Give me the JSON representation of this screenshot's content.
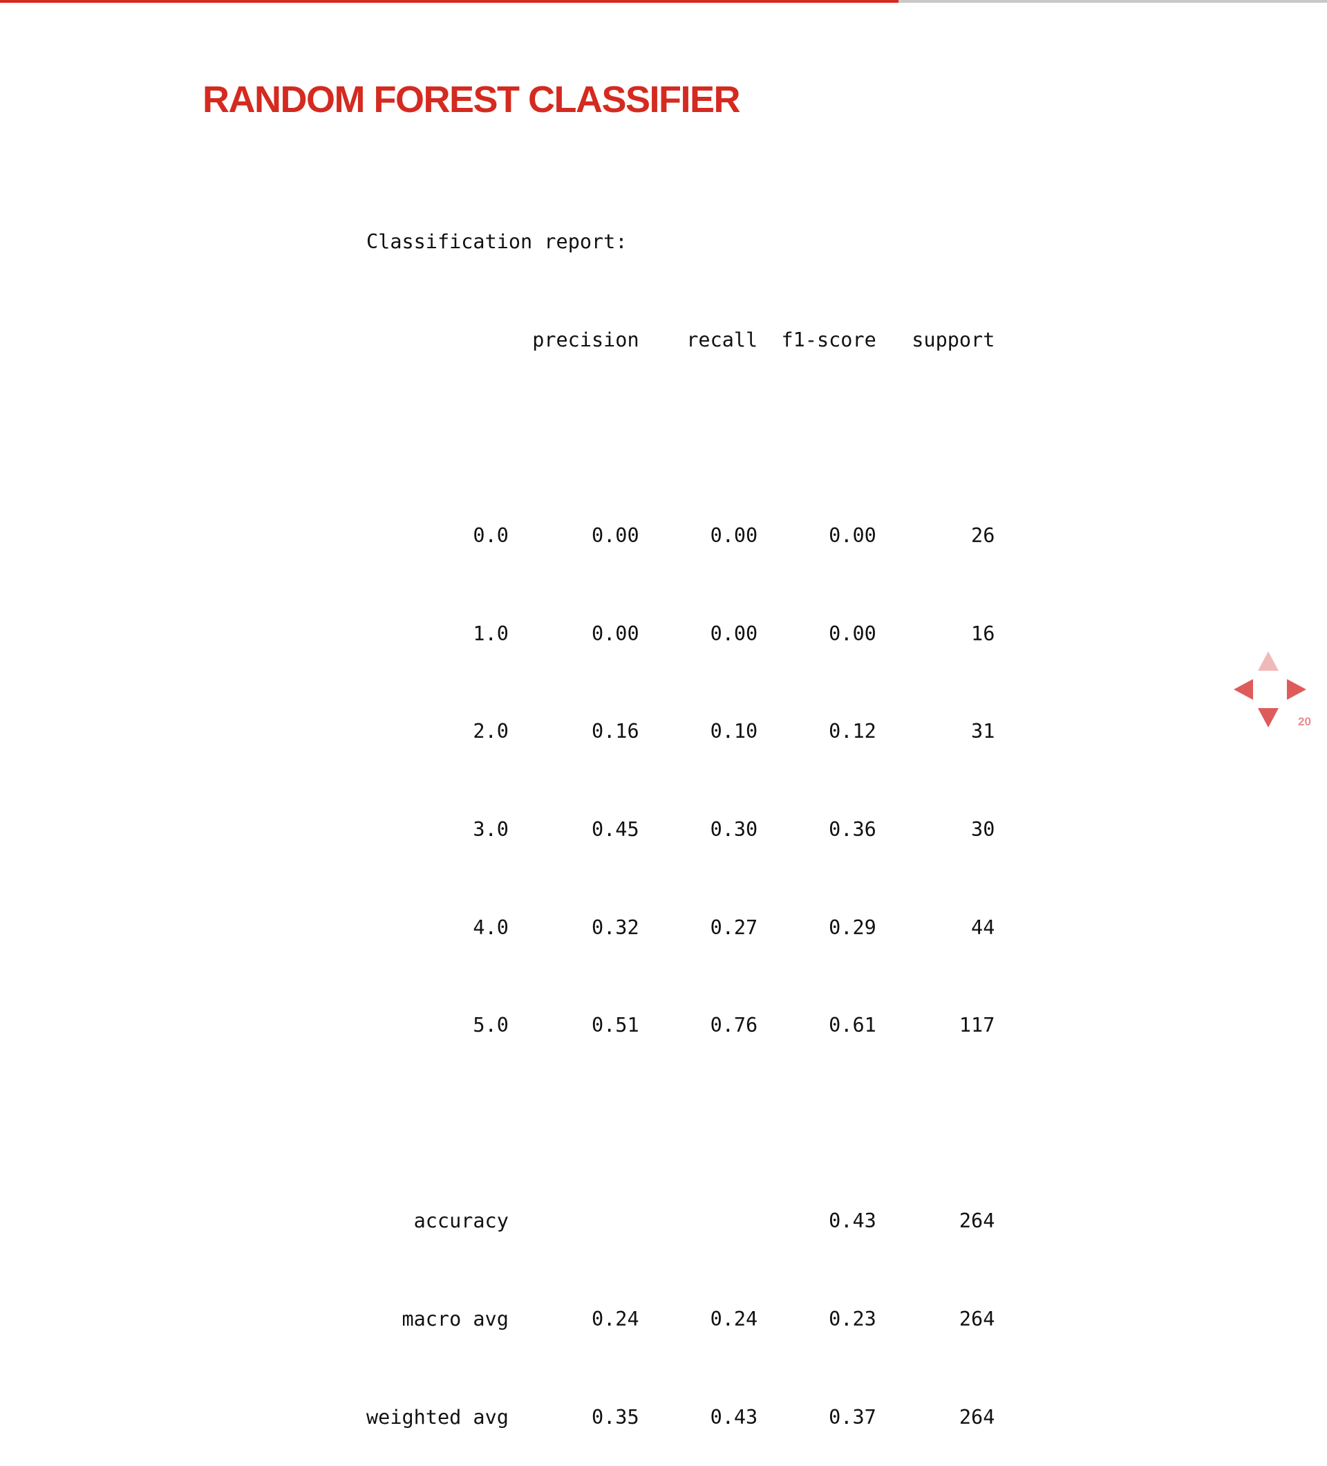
{
  "theme": {
    "accent": "#d42a20",
    "accent_light": "#f0b9b9",
    "arrow": "#df5b5b",
    "track": "#c8c8c8"
  },
  "progress": {
    "fraction": 0.677
  },
  "slide": {
    "title": "RANDOM FOREST CLASSIFIER",
    "number": "20"
  },
  "report": {
    "heading": "Classification report:",
    "columns": [
      "precision",
      "recall",
      "f1-score",
      "support"
    ],
    "rows": [
      {
        "label": "0.0",
        "precision": "0.00",
        "recall": "0.00",
        "f1": "0.00",
        "support": "26"
      },
      {
        "label": "1.0",
        "precision": "0.00",
        "recall": "0.00",
        "f1": "0.00",
        "support": "16"
      },
      {
        "label": "2.0",
        "precision": "0.16",
        "recall": "0.10",
        "f1": "0.12",
        "support": "31"
      },
      {
        "label": "3.0",
        "precision": "0.45",
        "recall": "0.30",
        "f1": "0.36",
        "support": "30"
      },
      {
        "label": "4.0",
        "precision": "0.32",
        "recall": "0.27",
        "f1": "0.29",
        "support": "44"
      },
      {
        "label": "5.0",
        "precision": "0.51",
        "recall": "0.76",
        "f1": "0.61",
        "support": "117"
      }
    ],
    "accuracy": {
      "label": "accuracy",
      "f1": "0.43",
      "support": "264"
    },
    "macro_avg": {
      "label": "macro avg",
      "precision": "0.24",
      "recall": "0.24",
      "f1": "0.23",
      "support": "264"
    },
    "weighted_avg": {
      "label": "weighted avg",
      "precision": "0.35",
      "recall": "0.43",
      "f1": "0.37",
      "support": "264"
    }
  },
  "navigation": {
    "up_icon": "triangle-up-icon",
    "down_icon": "triangle-down-icon",
    "left_icon": "triangle-left-icon",
    "right_icon": "triangle-right-icon"
  }
}
